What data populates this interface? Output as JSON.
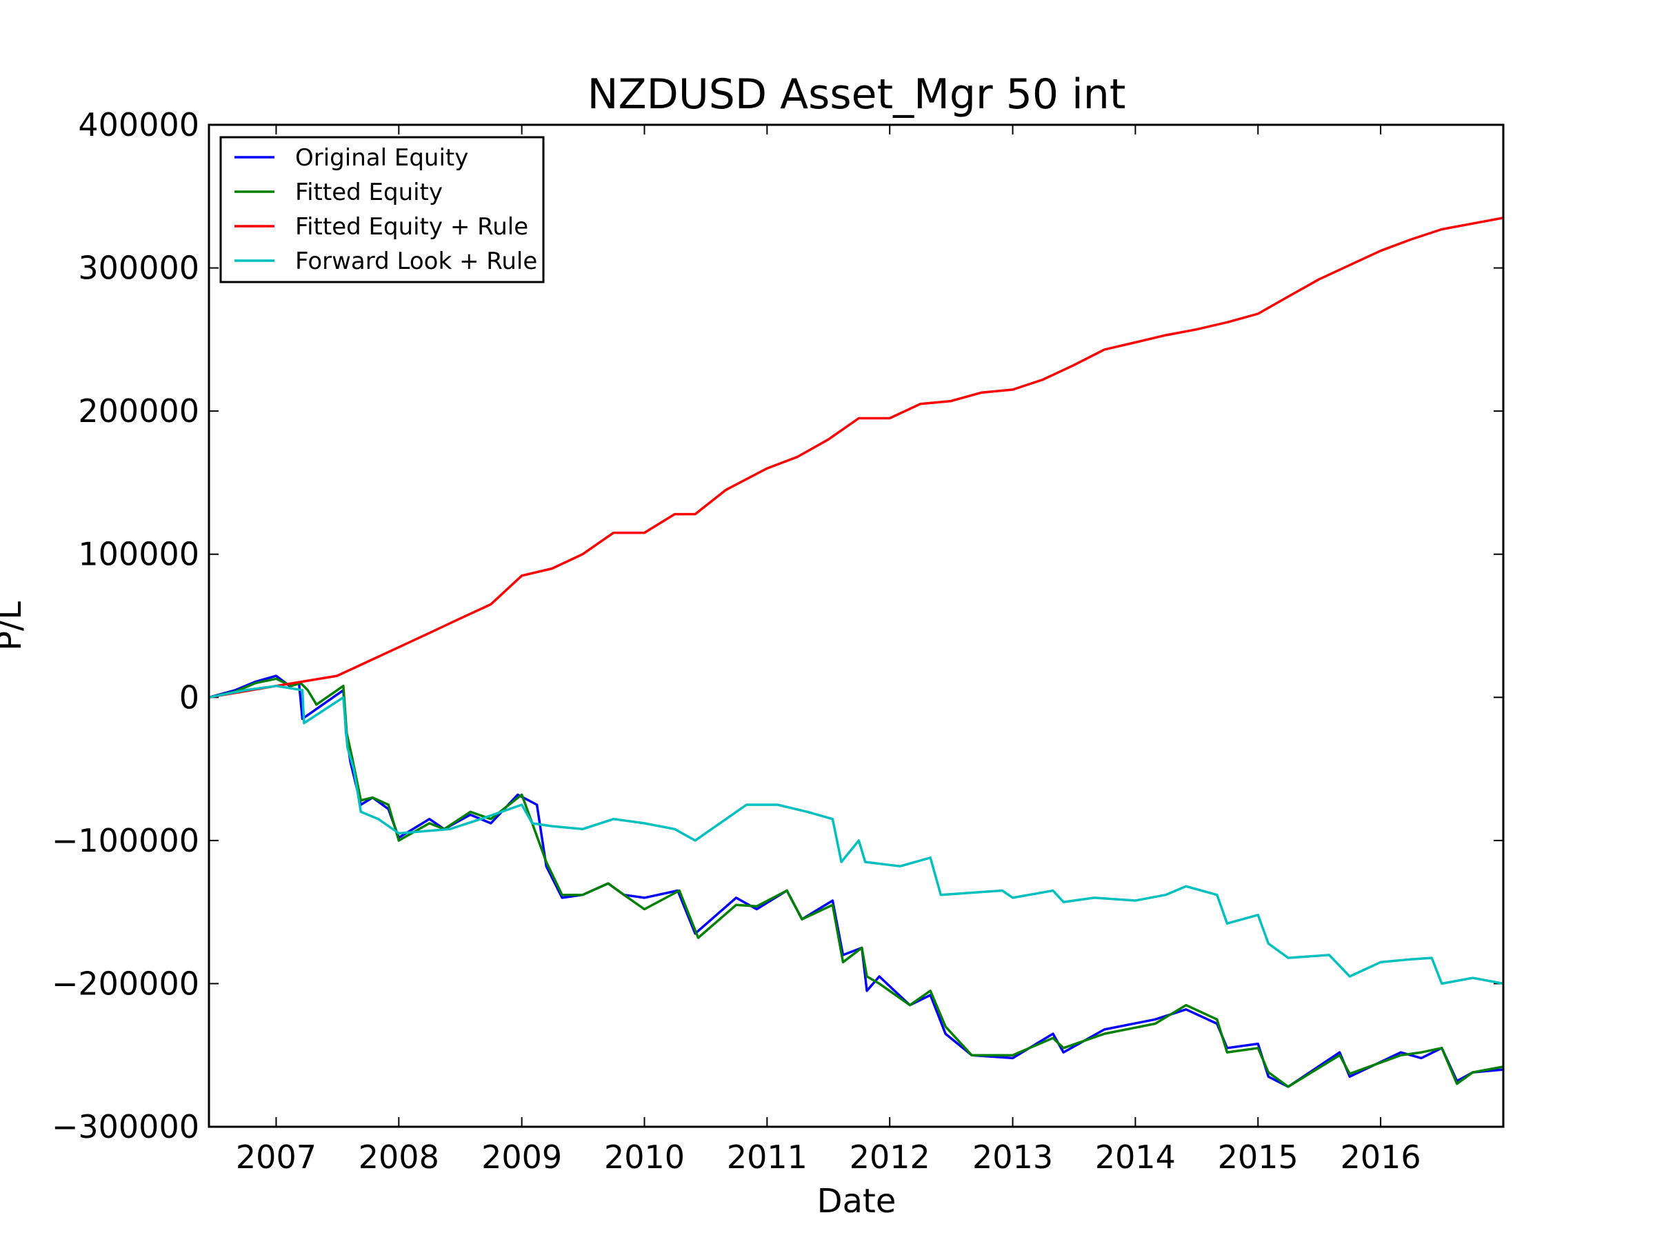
{
  "chart_data": {
    "type": "line",
    "title": "NZDUSD Asset_Mgr 50 int",
    "xlabel": "Date",
    "ylabel": "P/L",
    "xlim": [
      "2006-06-15",
      "2016-12-31"
    ],
    "ylim": [
      -300000,
      400000
    ],
    "x_ticks": [
      "2007",
      "2008",
      "2009",
      "2010",
      "2011",
      "2012",
      "2013",
      "2014",
      "2015",
      "2016"
    ],
    "y_ticks": [
      {
        "value": -300000,
        "label": "−300000"
      },
      {
        "value": -200000,
        "label": "−200000"
      },
      {
        "value": -100000,
        "label": "−100000"
      },
      {
        "value": 0,
        "label": "0"
      },
      {
        "value": 100000,
        "label": "100000"
      },
      {
        "value": 200000,
        "label": "200000"
      },
      {
        "value": 300000,
        "label": "300000"
      },
      {
        "value": 400000,
        "label": "400000"
      }
    ],
    "grid": false,
    "legend_position": "top-left",
    "series": [
      {
        "name": "Original Equity",
        "color": "#0000ff",
        "points": [
          [
            "2006-06-15",
            0
          ],
          [
            "2006-09-01",
            5000
          ],
          [
            "2006-11-01",
            11000
          ],
          [
            "2007-01-01",
            15000
          ],
          [
            "2007-02-10",
            8000
          ],
          [
            "2007-03-10",
            10000
          ],
          [
            "2007-03-20",
            -15000
          ],
          [
            "2007-07-20",
            5000
          ],
          [
            "2007-07-28",
            -25000
          ],
          [
            "2007-08-10",
            -45000
          ],
          [
            "2007-09-10",
            -75000
          ],
          [
            "2007-10-15",
            -70000
          ],
          [
            "2007-12-01",
            -78000
          ],
          [
            "2008-01-01",
            -98000
          ],
          [
            "2008-04-01",
            -85000
          ],
          [
            "2008-05-15",
            -92000
          ],
          [
            "2008-08-01",
            -82000
          ],
          [
            "2008-10-01",
            -88000
          ],
          [
            "2008-12-20",
            -68000
          ],
          [
            "2009-02-15",
            -75000
          ],
          [
            "2009-03-15",
            -118000
          ],
          [
            "2009-05-01",
            -140000
          ],
          [
            "2009-07-01",
            -138000
          ],
          [
            "2009-09-15",
            -130000
          ],
          [
            "2009-11-01",
            -138000
          ],
          [
            "2010-01-01",
            -140000
          ],
          [
            "2010-04-10",
            -135000
          ],
          [
            "2010-06-01",
            -165000
          ],
          [
            "2010-10-01",
            -140000
          ],
          [
            "2010-12-01",
            -148000
          ],
          [
            "2011-03-01",
            -135000
          ],
          [
            "2011-04-15",
            -155000
          ],
          [
            "2011-07-15",
            -142000
          ],
          [
            "2011-08-15",
            -180000
          ],
          [
            "2011-10-10",
            -175000
          ],
          [
            "2011-10-25",
            -205000
          ],
          [
            "2011-12-01",
            -195000
          ],
          [
            "2012-03-01",
            -215000
          ],
          [
            "2012-05-01",
            -208000
          ],
          [
            "2012-06-15",
            -235000
          ],
          [
            "2012-09-01",
            -250000
          ],
          [
            "2013-01-01",
            -252000
          ],
          [
            "2013-05-01",
            -235000
          ],
          [
            "2013-06-01",
            -248000
          ],
          [
            "2013-10-01",
            -232000
          ],
          [
            "2014-03-01",
            -225000
          ],
          [
            "2014-06-01",
            -218000
          ],
          [
            "2014-09-01",
            -228000
          ],
          [
            "2014-10-01",
            -245000
          ],
          [
            "2015-01-01",
            -242000
          ],
          [
            "2015-02-01",
            -265000
          ],
          [
            "2015-04-01",
            -272000
          ],
          [
            "2015-09-01",
            -248000
          ],
          [
            "2015-10-01",
            -265000
          ],
          [
            "2016-03-01",
            -248000
          ],
          [
            "2016-05-01",
            -252000
          ],
          [
            "2016-07-01",
            -245000
          ],
          [
            "2016-08-15",
            -268000
          ],
          [
            "2016-10-01",
            -262000
          ],
          [
            "2016-12-31",
            -260000
          ]
        ]
      },
      {
        "name": "Fitted Equity",
        "color": "#008000",
        "points": [
          [
            "2006-06-15",
            0
          ],
          [
            "2006-09-01",
            4000
          ],
          [
            "2006-11-01",
            10000
          ],
          [
            "2007-01-01",
            13000
          ],
          [
            "2007-02-15",
            8000
          ],
          [
            "2007-03-15",
            10000
          ],
          [
            "2007-04-05",
            5000
          ],
          [
            "2007-05-01",
            -5000
          ],
          [
            "2007-07-20",
            8000
          ],
          [
            "2007-07-30",
            -25000
          ],
          [
            "2007-08-15",
            -42000
          ],
          [
            "2007-09-10",
            -72000
          ],
          [
            "2007-10-15",
            -70000
          ],
          [
            "2007-12-01",
            -75000
          ],
          [
            "2008-01-01",
            -100000
          ],
          [
            "2008-04-01",
            -88000
          ],
          [
            "2008-05-15",
            -92000
          ],
          [
            "2008-08-01",
            -80000
          ],
          [
            "2008-10-01",
            -85000
          ],
          [
            "2009-01-01",
            -68000
          ],
          [
            "2009-03-15",
            -115000
          ],
          [
            "2009-05-01",
            -138000
          ],
          [
            "2009-07-01",
            -138000
          ],
          [
            "2009-09-15",
            -130000
          ],
          [
            "2009-11-01",
            -138000
          ],
          [
            "2010-01-01",
            -148000
          ],
          [
            "2010-04-15",
            -135000
          ],
          [
            "2010-06-10",
            -168000
          ],
          [
            "2010-10-01",
            -145000
          ],
          [
            "2010-12-01",
            -146000
          ],
          [
            "2011-03-01",
            -135000
          ],
          [
            "2011-04-15",
            -155000
          ],
          [
            "2011-07-15",
            -145000
          ],
          [
            "2011-08-15",
            -185000
          ],
          [
            "2011-10-10",
            -175000
          ],
          [
            "2011-10-25",
            -195000
          ],
          [
            "2011-12-01",
            -200000
          ],
          [
            "2012-03-01",
            -215000
          ],
          [
            "2012-05-01",
            -205000
          ],
          [
            "2012-06-15",
            -230000
          ],
          [
            "2012-09-01",
            -250000
          ],
          [
            "2013-01-01",
            -250000
          ],
          [
            "2013-05-01",
            -238000
          ],
          [
            "2013-06-01",
            -245000
          ],
          [
            "2013-10-01",
            -235000
          ],
          [
            "2014-03-01",
            -228000
          ],
          [
            "2014-06-01",
            -215000
          ],
          [
            "2014-09-01",
            -225000
          ],
          [
            "2014-10-01",
            -248000
          ],
          [
            "2015-01-01",
            -245000
          ],
          [
            "2015-02-01",
            -262000
          ],
          [
            "2015-04-01",
            -272000
          ],
          [
            "2015-09-01",
            -250000
          ],
          [
            "2015-10-01",
            -263000
          ],
          [
            "2016-03-01",
            -250000
          ],
          [
            "2016-05-01",
            -248000
          ],
          [
            "2016-07-01",
            -245000
          ],
          [
            "2016-08-15",
            -270000
          ],
          [
            "2016-10-01",
            -262000
          ],
          [
            "2016-12-31",
            -258000
          ]
        ]
      },
      {
        "name": "Fitted Equity + Rule",
        "color": "#ff0000",
        "points": [
          [
            "2006-06-15",
            0
          ],
          [
            "2007-01-01",
            8000
          ],
          [
            "2007-07-01",
            15000
          ],
          [
            "2007-10-01",
            25000
          ],
          [
            "2008-01-01",
            35000
          ],
          [
            "2008-04-01",
            45000
          ],
          [
            "2008-07-01",
            55000
          ],
          [
            "2008-10-01",
            65000
          ],
          [
            "2009-01-01",
            85000
          ],
          [
            "2009-04-01",
            90000
          ],
          [
            "2009-07-01",
            100000
          ],
          [
            "2009-10-01",
            115000
          ],
          [
            "2010-01-01",
            115000
          ],
          [
            "2010-04-01",
            128000
          ],
          [
            "2010-06-01",
            128000
          ],
          [
            "2010-09-01",
            145000
          ],
          [
            "2011-01-01",
            160000
          ],
          [
            "2011-04-01",
            168000
          ],
          [
            "2011-07-01",
            180000
          ],
          [
            "2011-10-01",
            195000
          ],
          [
            "2012-01-01",
            195000
          ],
          [
            "2012-04-01",
            205000
          ],
          [
            "2012-07-01",
            207000
          ],
          [
            "2012-10-01",
            213000
          ],
          [
            "2013-01-01",
            215000
          ],
          [
            "2013-04-01",
            222000
          ],
          [
            "2013-07-01",
            232000
          ],
          [
            "2013-10-01",
            243000
          ],
          [
            "2014-01-01",
            248000
          ],
          [
            "2014-04-01",
            253000
          ],
          [
            "2014-07-01",
            257000
          ],
          [
            "2014-10-01",
            262000
          ],
          [
            "2015-01-01",
            268000
          ],
          [
            "2015-04-01",
            280000
          ],
          [
            "2015-07-01",
            292000
          ],
          [
            "2015-10-01",
            302000
          ],
          [
            "2016-01-01",
            312000
          ],
          [
            "2016-04-01",
            320000
          ],
          [
            "2016-07-01",
            327000
          ],
          [
            "2016-12-31",
            335000
          ]
        ]
      },
      {
        "name": "Forward Look + Rule",
        "color": "#00bfbf",
        "points": [
          [
            "2006-06-15",
            0
          ],
          [
            "2006-10-01",
            5000
          ],
          [
            "2007-01-01",
            8000
          ],
          [
            "2007-03-20",
            5000
          ],
          [
            "2007-03-25",
            -18000
          ],
          [
            "2007-07-20",
            0
          ],
          [
            "2007-08-01",
            -35000
          ],
          [
            "2007-08-20",
            -50000
          ],
          [
            "2007-09-10",
            -80000
          ],
          [
            "2007-11-01",
            -85000
          ],
          [
            "2008-01-01",
            -95000
          ],
          [
            "2008-06-01",
            -92000
          ],
          [
            "2008-09-01",
            -85000
          ],
          [
            "2009-01-01",
            -75000
          ],
          [
            "2009-02-01",
            -88000
          ],
          [
            "2009-04-01",
            -90000
          ],
          [
            "2009-07-01",
            -92000
          ],
          [
            "2009-10-01",
            -85000
          ],
          [
            "2010-01-01",
            -88000
          ],
          [
            "2010-04-01",
            -92000
          ],
          [
            "2010-06-01",
            -100000
          ],
          [
            "2010-09-01",
            -85000
          ],
          [
            "2010-11-01",
            -75000
          ],
          [
            "2011-02-01",
            -75000
          ],
          [
            "2011-05-01",
            -80000
          ],
          [
            "2011-07-15",
            -85000
          ],
          [
            "2011-08-10",
            -115000
          ],
          [
            "2011-10-01",
            -100000
          ],
          [
            "2011-10-20",
            -115000
          ],
          [
            "2012-02-01",
            -118000
          ],
          [
            "2012-05-01",
            -112000
          ],
          [
            "2012-06-01",
            -138000
          ],
          [
            "2012-12-01",
            -135000
          ],
          [
            "2013-01-01",
            -140000
          ],
          [
            "2013-05-01",
            -135000
          ],
          [
            "2013-06-01",
            -143000
          ],
          [
            "2013-09-01",
            -140000
          ],
          [
            "2014-01-01",
            -142000
          ],
          [
            "2014-04-01",
            -138000
          ],
          [
            "2014-06-01",
            -132000
          ],
          [
            "2014-09-01",
            -138000
          ],
          [
            "2014-10-01",
            -158000
          ],
          [
            "2015-01-01",
            -152000
          ],
          [
            "2015-02-01",
            -172000
          ],
          [
            "2015-04-01",
            -182000
          ],
          [
            "2015-08-01",
            -180000
          ],
          [
            "2015-10-01",
            -195000
          ],
          [
            "2016-01-01",
            -185000
          ],
          [
            "2016-04-01",
            -183000
          ],
          [
            "2016-06-01",
            -182000
          ],
          [
            "2016-07-01",
            -200000
          ],
          [
            "2016-10-01",
            -196000
          ],
          [
            "2016-12-31",
            -200000
          ]
        ]
      }
    ]
  }
}
